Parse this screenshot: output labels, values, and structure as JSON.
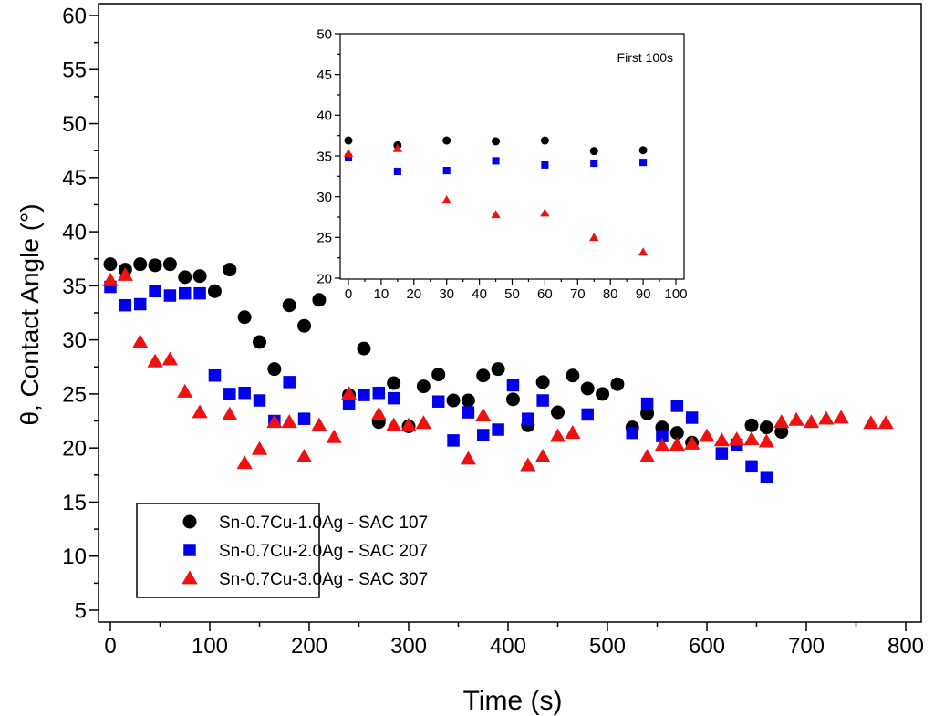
{
  "chart_data": [
    {
      "type": "scatter",
      "title": "",
      "xlabel": "Time (s)",
      "ylabel": "θ, Contact Angle (°)",
      "xlim": [
        0,
        800
      ],
      "ylim": [
        5,
        60
      ],
      "xticks": [
        "0",
        "100",
        "200",
        "300",
        "400",
        "500",
        "600",
        "700",
        "800"
      ],
      "yticks": [
        "5",
        "10",
        "15",
        "20",
        "25",
        "30",
        "35",
        "40",
        "45",
        "50",
        "55",
        "60"
      ],
      "grid": false,
      "legend_position": "bottom-left",
      "series": [
        {
          "name": "Sn-0.7Cu-1.0Ag - SAC 107",
          "color": "#000000",
          "marker": "circle",
          "x": [
            0,
            15,
            30,
            45,
            60,
            75,
            90,
            105,
            120,
            135,
            150,
            165,
            180,
            195,
            210,
            240,
            255,
            270,
            285,
            300,
            315,
            330,
            345,
            360,
            375,
            390,
            405,
            420,
            435,
            450,
            465,
            480,
            495,
            510,
            525,
            540,
            555,
            570,
            585,
            645,
            660,
            675
          ],
          "y": [
            37.0,
            36.5,
            37.0,
            36.9,
            37.0,
            35.8,
            35.9,
            34.5,
            36.5,
            32.1,
            29.8,
            27.3,
            33.2,
            31.3,
            33.7,
            24.9,
            29.2,
            22.4,
            26.0,
            22.0,
            25.7,
            26.8,
            24.4,
            24.4,
            26.7,
            27.3,
            24.5,
            22.1,
            26.1,
            23.3,
            26.7,
            25.5,
            25.0,
            25.9,
            21.9,
            23.2,
            21.9,
            21.4,
            20.5,
            22.1,
            21.9,
            21.5
          ]
        },
        {
          "name": "Sn-0.7Cu-2.0Ag - SAC 207",
          "color": "#0000ee",
          "marker": "square",
          "x": [
            0,
            15,
            30,
            45,
            60,
            75,
            90,
            105,
            120,
            135,
            150,
            165,
            180,
            195,
            240,
            255,
            270,
            285,
            330,
            345,
            360,
            375,
            390,
            405,
            420,
            435,
            480,
            525,
            540,
            555,
            570,
            585,
            615,
            630,
            645,
            660
          ],
          "y": [
            34.9,
            33.2,
            33.3,
            34.5,
            34.1,
            34.3,
            34.3,
            26.7,
            25.0,
            25.1,
            24.4,
            22.5,
            26.1,
            22.7,
            24.1,
            24.9,
            25.1,
            24.6,
            24.3,
            20.7,
            23.3,
            21.2,
            21.7,
            25.8,
            22.7,
            24.4,
            23.1,
            21.4,
            24.1,
            21.1,
            23.9,
            22.8,
            19.5,
            20.3,
            18.3,
            17.3
          ]
        },
        {
          "name": "Sn-0.7Cu-3.0Ag - SAC 307",
          "color": "#ee1111",
          "marker": "triangle",
          "x": [
            0,
            15,
            30,
            45,
            60,
            75,
            90,
            120,
            135,
            150,
            165,
            180,
            195,
            210,
            225,
            240,
            270,
            285,
            300,
            315,
            360,
            375,
            420,
            435,
            450,
            465,
            540,
            555,
            570,
            585,
            600,
            615,
            630,
            645,
            660,
            675,
            690,
            705,
            720,
            735,
            765,
            780
          ],
          "y": [
            35.5,
            36.0,
            29.8,
            28.0,
            28.2,
            25.2,
            23.3,
            23.1,
            18.6,
            19.9,
            22.4,
            22.4,
            19.2,
            22.1,
            21.0,
            25.0,
            23.1,
            22.1,
            22.1,
            22.3,
            19.0,
            23.0,
            18.4,
            19.2,
            21.1,
            21.4,
            19.2,
            20.2,
            20.3,
            20.4,
            21.1,
            20.7,
            20.8,
            20.8,
            20.6,
            22.4,
            22.6,
            22.4,
            22.7,
            22.8,
            22.3,
            22.3
          ]
        }
      ]
    },
    {
      "type": "scatter",
      "title": "First 100s",
      "xlim": [
        0,
        100
      ],
      "ylim": [
        20,
        50
      ],
      "xticks": [
        "0",
        "10",
        "20",
        "30",
        "40",
        "50",
        "60",
        "70",
        "80",
        "90",
        "100"
      ],
      "yticks": [
        "20",
        "25",
        "30",
        "35",
        "40",
        "45",
        "50"
      ],
      "grid": false,
      "series": [
        {
          "color": "#000000",
          "marker": "circle",
          "x": [
            0,
            15,
            30,
            45,
            60,
            75,
            90
          ],
          "y": [
            36.9,
            36.3,
            36.9,
            36.8,
            36.9,
            35.6,
            35.7
          ]
        },
        {
          "color": "#0000ee",
          "marker": "square",
          "x": [
            0,
            15,
            30,
            45,
            60,
            75,
            90
          ],
          "y": [
            34.8,
            33.1,
            33.2,
            34.4,
            33.9,
            34.1,
            34.2
          ]
        },
        {
          "color": "#ee1111",
          "marker": "triangle",
          "x": [
            0,
            15,
            30,
            45,
            60,
            75,
            90
          ],
          "y": [
            35.3,
            35.9,
            29.6,
            27.8,
            28.0,
            25.0,
            23.2
          ]
        }
      ]
    }
  ]
}
